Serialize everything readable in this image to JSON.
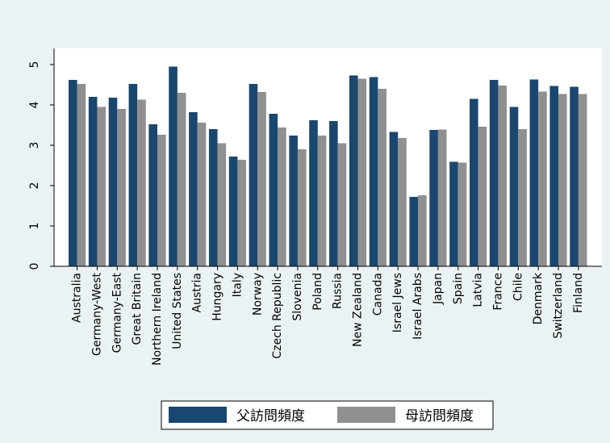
{
  "chart_data": {
    "type": "bar",
    "title": "",
    "xlabel": "",
    "ylabel": "",
    "ylim": [
      0,
      5
    ],
    "yticks": [
      "0",
      "1",
      "2",
      "3",
      "4",
      "5"
    ],
    "grid": false,
    "legend_position": "bottom",
    "categories": [
      "Australia",
      "Germany-West",
      "Germany-East",
      "Great Britain",
      "Northern Ireland",
      "United States",
      "Austria",
      "Hungary",
      "Italy",
      "Norway",
      "Czech Republic",
      "Slovenia",
      "Poland",
      "Russia",
      "New Zealand",
      "Canada",
      "Israel Jews",
      "Israel Arabs",
      "Japan",
      "Spain",
      "Latvia",
      "France",
      "Chile",
      "Denmark",
      "Switzerland",
      "Finland"
    ],
    "series": [
      {
        "name": "父訪問頻度",
        "color": "#1a476f",
        "values": [
          4.62,
          4.2,
          4.18,
          4.52,
          3.52,
          4.95,
          3.82,
          3.4,
          2.72,
          4.52,
          3.78,
          3.24,
          3.62,
          3.6,
          4.73,
          4.69,
          3.33,
          1.72,
          3.38,
          2.59,
          4.15,
          4.62,
          3.95,
          4.63,
          4.47,
          4.45
        ]
      },
      {
        "name": "母訪問頻度",
        "color": "#909090",
        "values": [
          4.52,
          3.95,
          3.9,
          4.13,
          3.26,
          4.3,
          3.56,
          3.05,
          2.64,
          4.32,
          3.44,
          2.9,
          3.24,
          3.05,
          4.65,
          4.4,
          3.18,
          1.76,
          3.39,
          2.57,
          3.46,
          4.48,
          3.4,
          4.33,
          4.27,
          4.27
        ]
      }
    ]
  },
  "colors": {
    "page_background": "#eaf2f3",
    "plot_background": "#ffffff"
  }
}
